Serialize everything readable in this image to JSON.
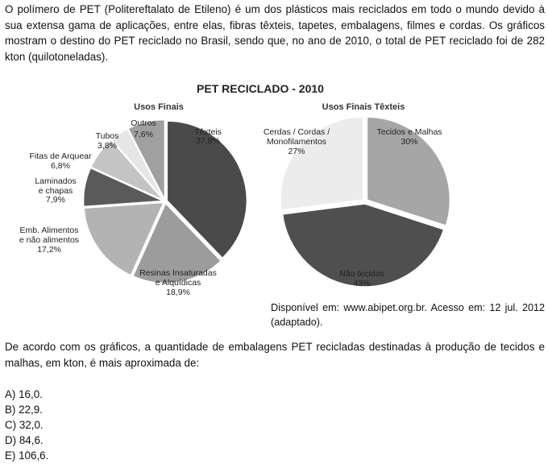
{
  "intro_text": "O polímero de PET (Politereftalato de Etileno) é um dos plásticos mais reciclados em todo o mundo devido à sua extensa gama de aplicações, entre elas, fibras têxteis, tapetes, embalagens, filmes e cordas. Os gráficos mostram o destino do PET reciclado no Brasil, sendo que, no ano de 2010, o total de PET reciclado foi de 282 kton (quilotoneladas).",
  "chart_data": [
    {
      "type": "pie",
      "title": "PET RECICLADO - 2010",
      "subtitle": "Usos Finais",
      "slices": [
        {
          "label": "Têxteis",
          "value": 37.8,
          "value_label": "37,8%",
          "color": "#4a4a4a"
        },
        {
          "label": "Resinas Insaturadas e Alquídicas",
          "value": 18.9,
          "value_label": "18,9%",
          "color": "#9c9c9c"
        },
        {
          "label": "Emb. Alimentos e não alimentos",
          "value": 17.2,
          "value_label": "17,2%",
          "color": "#b3b3b3"
        },
        {
          "label": "Laminados e chapas",
          "value": 7.9,
          "value_label": "7,9%",
          "color": "#5a5a5a"
        },
        {
          "label": "Fitas de Arquear",
          "value": 6.8,
          "value_label": "6,8%",
          "color": "#c4c4c4"
        },
        {
          "label": "Tubos",
          "value": 3.8,
          "value_label": "3,8%",
          "color": "#e6e6e6"
        },
        {
          "label": "Outros",
          "value": 7.6,
          "value_label": "7,6%",
          "color": "#a0a0a0"
        }
      ]
    },
    {
      "type": "pie",
      "subtitle": "Usos Finais Têxteis",
      "slices": [
        {
          "label": "Tecidos e Malhas",
          "value": 30,
          "value_label": "30%",
          "color": "#a6a6a6"
        },
        {
          "label": "Não tecidos",
          "value": 43,
          "value_label": "43%",
          "color": "#4f4f4f"
        },
        {
          "label": "Cerdas / Cordas / Monofilamentos",
          "value": 27,
          "value_label": "27%",
          "color": "#ececec"
        }
      ]
    }
  ],
  "labels": {
    "left": {
      "textil_1": "Têxteis",
      "textil_2": "37,8%",
      "resinas_1": "Resinas Insaturadas",
      "resinas_2": "e Alquídicas",
      "resinas_3": "18,9%",
      "emb_1": "Emb. Alimentos",
      "emb_2": "e não alimentos",
      "emb_3": "17,2%",
      "lam_1": "Laminados",
      "lam_2": "e chapas",
      "lam_3": "7,9%",
      "fitas_1": "Fitas de Arquear",
      "fitas_2": "6,8%",
      "tubos_1": "Tubos",
      "tubos_2": "3,8%",
      "outros_1": "Outros",
      "outros_2": "7,6%"
    },
    "right": {
      "tecidos_1": "Tecidos e Malhas",
      "tecidos_2": "30%",
      "nao_1": "Não tecidos",
      "nao_2": "43%",
      "cerdas_1": "Cerdas / Cordas /",
      "cerdas_2": "Monofilamentos",
      "cerdas_3": "27%"
    }
  },
  "source_text": "Disponível em: www.abipet.org.br. Acesso em: 12 jul. 2012 (adaptado).",
  "question_text": "De acordo com os gráficos, a quantidade de embalagens PET recicladas destinadas à produção de tecidos e malhas, em kton, é mais aproximada de:",
  "options": [
    "A) 16,0.",
    "B) 22,9.",
    "C) 32,0.",
    "D) 84,6.",
    "E) 106,6."
  ]
}
